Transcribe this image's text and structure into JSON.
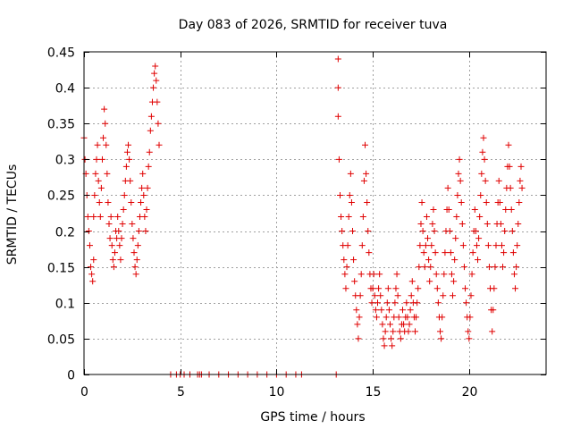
{
  "chart_data": {
    "type": "scatter",
    "title": "Day 083 of 2026, SRMTID for receiver tuva",
    "xlabel": "GPS time / hours",
    "ylabel": "SRMTID / TECUs",
    "xlim": [
      0,
      24
    ],
    "ylim": [
      0,
      0.45
    ],
    "xticks": [
      0,
      5,
      10,
      15,
      20
    ],
    "xtick_labels": [
      "0",
      "5",
      "10",
      "15",
      "20"
    ],
    "yticks": [
      0,
      0.05,
      0.1,
      0.15,
      0.2,
      0.25,
      0.3,
      0.35,
      0.4,
      0.45
    ],
    "ytick_labels": [
      "0",
      "0.05",
      "0.1",
      "0.15",
      "0.2",
      "0.25",
      "0.3",
      "0.35",
      "0.4",
      "0.45"
    ],
    "grid": true,
    "marker": "+",
    "color": "#e00000",
    "series": [
      {
        "name": "SRMTID",
        "points": [
          [
            0.0,
            0.33
          ],
          [
            0.05,
            0.3
          ],
          [
            0.1,
            0.28
          ],
          [
            0.15,
            0.25
          ],
          [
            0.2,
            0.22
          ],
          [
            0.25,
            0.2
          ],
          [
            0.3,
            0.18
          ],
          [
            0.35,
            0.15
          ],
          [
            0.4,
            0.14
          ],
          [
            0.45,
            0.13
          ],
          [
            0.5,
            0.16
          ],
          [
            0.5,
            0.22
          ],
          [
            0.55,
            0.25
          ],
          [
            0.6,
            0.28
          ],
          [
            0.65,
            0.3
          ],
          [
            0.7,
            0.32
          ],
          [
            0.75,
            0.27
          ],
          [
            0.8,
            0.24
          ],
          [
            0.85,
            0.22
          ],
          [
            0.9,
            0.26
          ],
          [
            0.95,
            0.3
          ],
          [
            1.0,
            0.33
          ],
          [
            1.05,
            0.37
          ],
          [
            1.1,
            0.35
          ],
          [
            1.15,
            0.32
          ],
          [
            1.2,
            0.28
          ],
          [
            1.25,
            0.24
          ],
          [
            1.3,
            0.21
          ],
          [
            1.35,
            0.19
          ],
          [
            1.4,
            0.22
          ],
          [
            1.45,
            0.18
          ],
          [
            1.5,
            0.16
          ],
          [
            1.55,
            0.15
          ],
          [
            1.6,
            0.17
          ],
          [
            1.65,
            0.2
          ],
          [
            1.7,
            0.19
          ],
          [
            1.75,
            0.22
          ],
          [
            1.8,
            0.2
          ],
          [
            1.85,
            0.18
          ],
          [
            1.9,
            0.16
          ],
          [
            1.95,
            0.19
          ],
          [
            2.0,
            0.21
          ],
          [
            2.05,
            0.23
          ],
          [
            2.1,
            0.25
          ],
          [
            2.15,
            0.27
          ],
          [
            2.2,
            0.29
          ],
          [
            2.25,
            0.31
          ],
          [
            2.3,
            0.32
          ],
          [
            2.35,
            0.3
          ],
          [
            2.4,
            0.27
          ],
          [
            2.45,
            0.24
          ],
          [
            2.5,
            0.21
          ],
          [
            2.55,
            0.19
          ],
          [
            2.6,
            0.17
          ],
          [
            2.65,
            0.15
          ],
          [
            2.7,
            0.14
          ],
          [
            2.75,
            0.16
          ],
          [
            2.8,
            0.18
          ],
          [
            2.85,
            0.2
          ],
          [
            2.9,
            0.22
          ],
          [
            2.95,
            0.24
          ],
          [
            3.0,
            0.26
          ],
          [
            3.05,
            0.28
          ],
          [
            3.1,
            0.25
          ],
          [
            3.15,
            0.22
          ],
          [
            3.2,
            0.2
          ],
          [
            3.25,
            0.23
          ],
          [
            3.3,
            0.26
          ],
          [
            3.35,
            0.29
          ],
          [
            3.4,
            0.31
          ],
          [
            3.45,
            0.34
          ],
          [
            3.5,
            0.36
          ],
          [
            3.55,
            0.38
          ],
          [
            3.6,
            0.4
          ],
          [
            3.65,
            0.42
          ],
          [
            3.7,
            0.43
          ],
          [
            3.75,
            0.41
          ],
          [
            3.8,
            0.38
          ],
          [
            3.85,
            0.35
          ],
          [
            3.9,
            0.32
          ],
          [
            4.5,
            0.0
          ],
          [
            4.8,
            0.0
          ],
          [
            5.0,
            0.0
          ],
          [
            5.2,
            0.0
          ],
          [
            5.5,
            0.0
          ],
          [
            5.9,
            0.0
          ],
          [
            6.0,
            0.0
          ],
          [
            6.1,
            0.0
          ],
          [
            6.5,
            0.0
          ],
          [
            7.0,
            0.0
          ],
          [
            7.5,
            0.0
          ],
          [
            8.0,
            0.0
          ],
          [
            8.5,
            0.0
          ],
          [
            9.0,
            0.0
          ],
          [
            9.5,
            0.0
          ],
          [
            10.0,
            0.0
          ],
          [
            10.5,
            0.0
          ],
          [
            11.0,
            0.0
          ],
          [
            11.3,
            0.0
          ],
          [
            13.1,
            0.0
          ],
          [
            13.2,
            0.44
          ],
          [
            13.2,
            0.4
          ],
          [
            13.2,
            0.36
          ],
          [
            13.25,
            0.3
          ],
          [
            13.3,
            0.25
          ],
          [
            13.35,
            0.22
          ],
          [
            13.4,
            0.2
          ],
          [
            13.45,
            0.18
          ],
          [
            13.5,
            0.16
          ],
          [
            13.55,
            0.14
          ],
          [
            13.6,
            0.12
          ],
          [
            13.65,
            0.15
          ],
          [
            13.7,
            0.18
          ],
          [
            13.75,
            0.22
          ],
          [
            13.8,
            0.25
          ],
          [
            13.85,
            0.28
          ],
          [
            13.9,
            0.24
          ],
          [
            13.95,
            0.2
          ],
          [
            14.0,
            0.16
          ],
          [
            14.05,
            0.13
          ],
          [
            14.1,
            0.11
          ],
          [
            14.15,
            0.09
          ],
          [
            14.2,
            0.07
          ],
          [
            14.25,
            0.05
          ],
          [
            14.3,
            0.08
          ],
          [
            14.35,
            0.11
          ],
          [
            14.4,
            0.14
          ],
          [
            14.45,
            0.18
          ],
          [
            14.5,
            0.22
          ],
          [
            14.55,
            0.27
          ],
          [
            14.6,
            0.32
          ],
          [
            14.65,
            0.28
          ],
          [
            14.7,
            0.24
          ],
          [
            14.75,
            0.2
          ],
          [
            14.8,
            0.17
          ],
          [
            14.85,
            0.14
          ],
          [
            14.9,
            0.12
          ],
          [
            14.95,
            0.1
          ],
          [
            15.0,
            0.12
          ],
          [
            15.05,
            0.14
          ],
          [
            15.1,
            0.11
          ],
          [
            15.15,
            0.09
          ],
          [
            15.2,
            0.08
          ],
          [
            15.25,
            0.1
          ],
          [
            15.3,
            0.12
          ],
          [
            15.35,
            0.14
          ],
          [
            15.4,
            0.11
          ],
          [
            15.45,
            0.09
          ],
          [
            15.5,
            0.07
          ],
          [
            15.55,
            0.05
          ],
          [
            15.6,
            0.04
          ],
          [
            15.65,
            0.06
          ],
          [
            15.7,
            0.08
          ],
          [
            15.75,
            0.1
          ],
          [
            15.8,
            0.12
          ],
          [
            15.85,
            0.09
          ],
          [
            15.9,
            0.07
          ],
          [
            15.95,
            0.05
          ],
          [
            16.0,
            0.04
          ],
          [
            16.05,
            0.06
          ],
          [
            16.1,
            0.08
          ],
          [
            16.15,
            0.1
          ],
          [
            16.2,
            0.12
          ],
          [
            16.25,
            0.14
          ],
          [
            16.3,
            0.11
          ],
          [
            16.35,
            0.08
          ],
          [
            16.4,
            0.06
          ],
          [
            16.45,
            0.05
          ],
          [
            16.5,
            0.07
          ],
          [
            16.55,
            0.09
          ],
          [
            16.6,
            0.07
          ],
          [
            16.65,
            0.06
          ],
          [
            16.7,
            0.08
          ],
          [
            16.75,
            0.1
          ],
          [
            16.8,
            0.08
          ],
          [
            16.85,
            0.06
          ],
          [
            16.9,
            0.07
          ],
          [
            16.95,
            0.09
          ],
          [
            17.0,
            0.11
          ],
          [
            17.05,
            0.13
          ],
          [
            17.1,
            0.1
          ],
          [
            17.15,
            0.08
          ],
          [
            17.2,
            0.06
          ],
          [
            17.25,
            0.08
          ],
          [
            17.3,
            0.1
          ],
          [
            17.35,
            0.12
          ],
          [
            17.4,
            0.15
          ],
          [
            17.45,
            0.18
          ],
          [
            17.5,
            0.21
          ],
          [
            17.55,
            0.24
          ],
          [
            17.6,
            0.2
          ],
          [
            17.65,
            0.17
          ],
          [
            17.7,
            0.15
          ],
          [
            17.75,
            0.18
          ],
          [
            17.8,
            0.22
          ],
          [
            17.85,
            0.19
          ],
          [
            17.9,
            0.16
          ],
          [
            17.95,
            0.13
          ],
          [
            18.0,
            0.15
          ],
          [
            18.05,
            0.18
          ],
          [
            18.1,
            0.21
          ],
          [
            18.15,
            0.23
          ],
          [
            18.2,
            0.2
          ],
          [
            18.25,
            0.17
          ],
          [
            18.3,
            0.14
          ],
          [
            18.35,
            0.12
          ],
          [
            18.4,
            0.1
          ],
          [
            18.45,
            0.08
          ],
          [
            18.5,
            0.06
          ],
          [
            18.55,
            0.05
          ],
          [
            18.6,
            0.08
          ],
          [
            18.65,
            0.11
          ],
          [
            18.7,
            0.14
          ],
          [
            18.75,
            0.17
          ],
          [
            18.8,
            0.2
          ],
          [
            18.85,
            0.23
          ],
          [
            18.9,
            0.26
          ],
          [
            18.95,
            0.23
          ],
          [
            19.0,
            0.2
          ],
          [
            19.05,
            0.17
          ],
          [
            19.1,
            0.14
          ],
          [
            19.15,
            0.11
          ],
          [
            19.2,
            0.13
          ],
          [
            19.25,
            0.16
          ],
          [
            19.3,
            0.19
          ],
          [
            19.35,
            0.22
          ],
          [
            19.4,
            0.25
          ],
          [
            19.45,
            0.28
          ],
          [
            19.5,
            0.3
          ],
          [
            19.55,
            0.27
          ],
          [
            19.6,
            0.24
          ],
          [
            19.65,
            0.21
          ],
          [
            19.7,
            0.18
          ],
          [
            19.75,
            0.15
          ],
          [
            19.8,
            0.12
          ],
          [
            19.85,
            0.1
          ],
          [
            19.9,
            0.08
          ],
          [
            19.95,
            0.06
          ],
          [
            20.0,
            0.05
          ],
          [
            20.05,
            0.08
          ],
          [
            20.1,
            0.11
          ],
          [
            20.15,
            0.14
          ],
          [
            20.2,
            0.17
          ],
          [
            20.25,
            0.2
          ],
          [
            20.3,
            0.23
          ],
          [
            20.35,
            0.2
          ],
          [
            20.4,
            0.18
          ],
          [
            20.45,
            0.16
          ],
          [
            20.5,
            0.19
          ],
          [
            20.55,
            0.22
          ],
          [
            20.6,
            0.25
          ],
          [
            20.65,
            0.28
          ],
          [
            20.7,
            0.31
          ],
          [
            20.75,
            0.33
          ],
          [
            20.8,
            0.3
          ],
          [
            20.85,
            0.27
          ],
          [
            20.9,
            0.24
          ],
          [
            20.95,
            0.21
          ],
          [
            21.0,
            0.18
          ],
          [
            21.05,
            0.15
          ],
          [
            21.1,
            0.12
          ],
          [
            21.15,
            0.09
          ],
          [
            21.2,
            0.06
          ],
          [
            21.25,
            0.09
          ],
          [
            21.3,
            0.12
          ],
          [
            21.35,
            0.15
          ],
          [
            21.4,
            0.18
          ],
          [
            21.45,
            0.21
          ],
          [
            21.5,
            0.24
          ],
          [
            21.55,
            0.27
          ],
          [
            21.6,
            0.24
          ],
          [
            21.65,
            0.21
          ],
          [
            21.7,
            0.18
          ],
          [
            21.75,
            0.15
          ],
          [
            21.8,
            0.17
          ],
          [
            21.85,
            0.2
          ],
          [
            21.9,
            0.23
          ],
          [
            21.95,
            0.26
          ],
          [
            22.0,
            0.29
          ],
          [
            22.05,
            0.32
          ],
          [
            22.1,
            0.29
          ],
          [
            22.15,
            0.26
          ],
          [
            22.2,
            0.23
          ],
          [
            22.25,
            0.2
          ],
          [
            22.3,
            0.17
          ],
          [
            22.35,
            0.14
          ],
          [
            22.4,
            0.12
          ],
          [
            22.45,
            0.15
          ],
          [
            22.5,
            0.18
          ],
          [
            22.55,
            0.21
          ],
          [
            22.6,
            0.24
          ],
          [
            22.65,
            0.27
          ],
          [
            22.7,
            0.29
          ],
          [
            22.75,
            0.26
          ]
        ]
      }
    ]
  }
}
